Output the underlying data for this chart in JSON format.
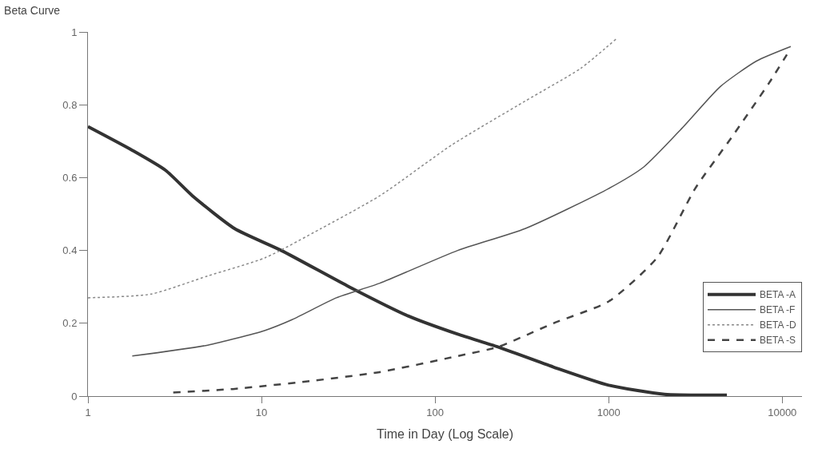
{
  "chart_data": {
    "type": "line",
    "title": "Beta Curve",
    "xlabel": "Time in Day (Log Scale)",
    "log": "x",
    "xlim": [
      1,
      13000
    ],
    "xticks": [
      1,
      10,
      100,
      1000,
      10000
    ],
    "ylim": [
      0,
      1
    ],
    "yticks": [
      0,
      0.2,
      0.4,
      0.6,
      0.8,
      1
    ],
    "legend": "right",
    "marker": "none",
    "series": [
      {
        "name": "BETA -A",
        "color": "#333333",
        "line_style": "solid",
        "x": [
          1,
          1.8,
          2.8,
          4,
          7,
          13,
          32,
          70,
          135,
          230,
          480,
          1000,
          2100,
          4800
        ],
        "values": [
          0.74,
          0.675,
          0.62,
          0.55,
          0.46,
          0.4,
          0.3,
          0.22,
          0.17,
          0.135,
          0.08,
          0.03,
          0.005,
          0.003
        ]
      },
      {
        "name": "BETA -F",
        "color": "#555555",
        "line_style": "solid",
        "x": [
          1.8,
          4.9,
          10.4,
          15,
          27,
          48,
          135,
          330,
          1000,
          1600,
          2700,
          4400,
          7100,
          11200
        ],
        "values": [
          0.11,
          0.14,
          0.18,
          0.21,
          0.27,
          0.31,
          0.4,
          0.46,
          0.57,
          0.63,
          0.74,
          0.85,
          0.92,
          0.96
        ]
      },
      {
        "name": "BETA -D",
        "color": "#888888",
        "line_style": "dotted",
        "x": [
          1,
          2.3,
          4.9,
          10.5,
          22,
          48,
          125,
          330,
          690,
          1100
        ],
        "values": [
          0.27,
          0.28,
          0.33,
          0.38,
          0.46,
          0.55,
          0.69,
          0.81,
          0.9,
          0.98
        ]
      },
      {
        "name": "BETA -S",
        "color": "#444444",
        "line_style": "dashed",
        "x": [
          3.1,
          7,
          18,
          48,
          135,
          230,
          480,
          1000,
          1900,
          3150,
          5100,
          8400,
          11200
        ],
        "values": [
          0.01,
          0.02,
          0.04,
          0.066,
          0.11,
          0.135,
          0.2,
          0.26,
          0.38,
          0.57,
          0.71,
          0.86,
          0.955
        ]
      }
    ]
  }
}
